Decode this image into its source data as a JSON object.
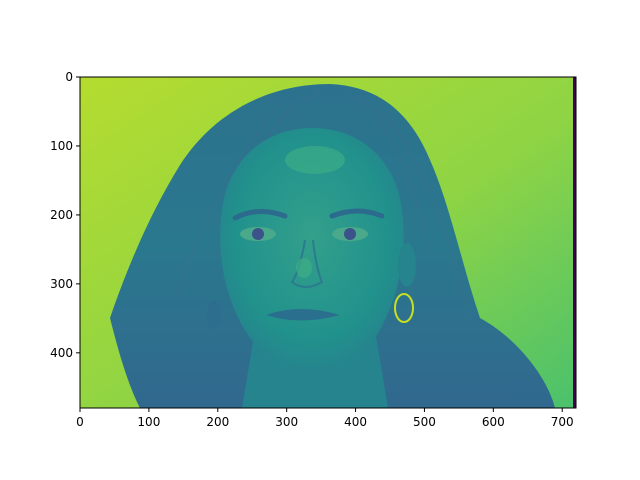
{
  "figure": {
    "background": "#ffffff",
    "colormap": "viridis",
    "image_extent": {
      "x": [
        0,
        720
      ],
      "y": [
        0,
        480
      ]
    },
    "y_axis_inverted": true,
    "x_ticks": [
      "0",
      "100",
      "200",
      "300",
      "400",
      "500",
      "600",
      "700"
    ],
    "y_ticks": [
      "0",
      "100",
      "200",
      "300",
      "400"
    ],
    "colors": {
      "background_wall": "#b5dc2f",
      "wall_right": "#5ec962",
      "hair_dark": "#30688e",
      "hair_mid": "#2a788e",
      "skin": "#21918c",
      "skin_light": "#3aa88a",
      "dark_features": "#3b528b",
      "right_edge_strip": "#440154"
    }
  }
}
